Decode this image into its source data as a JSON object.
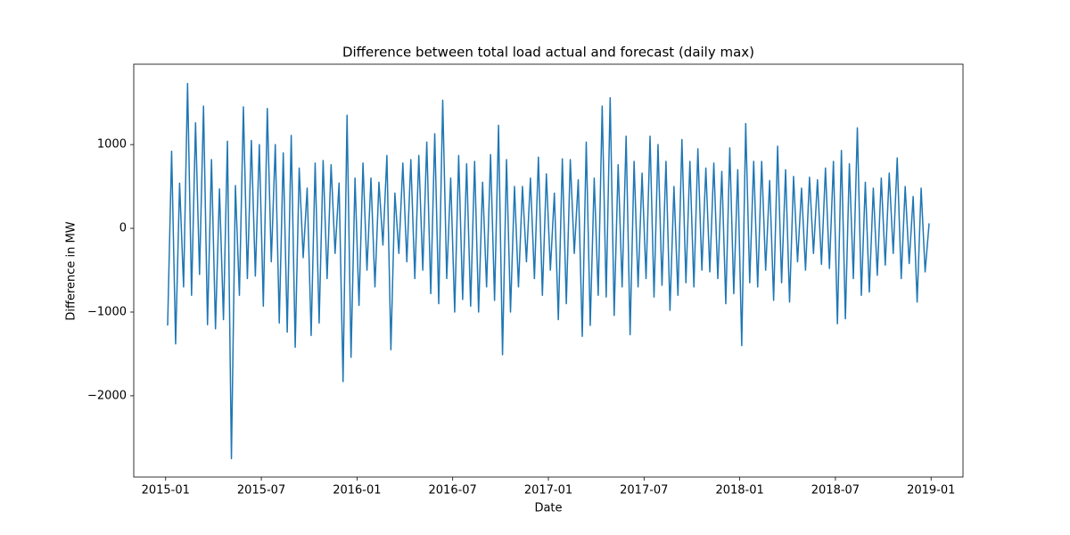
{
  "chart_data": {
    "type": "line",
    "title": "Difference between total load actual and forecast (daily max)",
    "x_label": "Date",
    "y_label": "Difference in MW",
    "x": [
      "2015-01",
      "2015-01",
      "2015-01",
      "2015-01",
      "2015-02",
      "2015-02",
      "2015-02",
      "2015-02",
      "2015-03",
      "2015-03",
      "2015-03",
      "2015-03",
      "2015-04",
      "2015-04",
      "2015-04",
      "2015-04",
      "2015-05",
      "2015-05",
      "2015-05",
      "2015-05",
      "2015-06",
      "2015-06",
      "2015-06",
      "2015-06",
      "2015-07",
      "2015-07",
      "2015-07",
      "2015-07",
      "2015-08",
      "2015-08",
      "2015-08",
      "2015-08",
      "2015-09",
      "2015-09",
      "2015-09",
      "2015-09",
      "2015-10",
      "2015-10",
      "2015-10",
      "2015-10",
      "2015-11",
      "2015-11",
      "2015-11",
      "2015-11",
      "2015-12",
      "2015-12",
      "2015-12",
      "2015-12",
      "2016-01",
      "2016-01",
      "2016-01",
      "2016-01",
      "2016-02",
      "2016-02",
      "2016-02",
      "2016-02",
      "2016-03",
      "2016-03",
      "2016-03",
      "2016-03",
      "2016-04",
      "2016-04",
      "2016-04",
      "2016-04",
      "2016-05",
      "2016-05",
      "2016-05",
      "2016-05",
      "2016-06",
      "2016-06",
      "2016-06",
      "2016-06",
      "2016-07",
      "2016-07",
      "2016-07",
      "2016-07",
      "2016-08",
      "2016-08",
      "2016-08",
      "2016-08",
      "2016-09",
      "2016-09",
      "2016-09",
      "2016-09",
      "2016-10",
      "2016-10",
      "2016-10",
      "2016-10",
      "2016-11",
      "2016-11",
      "2016-11",
      "2016-11",
      "2016-12",
      "2016-12",
      "2016-12",
      "2016-12",
      "2017-01",
      "2017-01",
      "2017-01",
      "2017-01",
      "2017-02",
      "2017-02",
      "2017-02",
      "2017-02",
      "2017-03",
      "2017-03",
      "2017-03",
      "2017-03",
      "2017-04",
      "2017-04",
      "2017-04",
      "2017-04",
      "2017-05",
      "2017-05",
      "2017-05",
      "2017-05",
      "2017-06",
      "2017-06",
      "2017-06",
      "2017-06",
      "2017-07",
      "2017-07",
      "2017-07",
      "2017-07",
      "2017-08",
      "2017-08",
      "2017-08",
      "2017-08",
      "2017-09",
      "2017-09",
      "2017-09",
      "2017-09",
      "2017-10",
      "2017-10",
      "2017-10",
      "2017-10",
      "2017-11",
      "2017-11",
      "2017-11",
      "2017-11",
      "2017-12",
      "2017-12",
      "2017-12",
      "2017-12",
      "2018-01",
      "2018-01",
      "2018-01",
      "2018-01",
      "2018-02",
      "2018-02",
      "2018-02",
      "2018-02",
      "2018-03",
      "2018-03",
      "2018-03",
      "2018-03",
      "2018-04",
      "2018-04",
      "2018-04",
      "2018-04",
      "2018-05",
      "2018-05",
      "2018-05",
      "2018-05",
      "2018-06",
      "2018-06",
      "2018-06",
      "2018-06",
      "2018-07",
      "2018-07",
      "2018-07",
      "2018-07",
      "2018-08",
      "2018-08",
      "2018-08",
      "2018-08",
      "2018-09",
      "2018-09",
      "2018-09",
      "2018-09",
      "2018-10",
      "2018-10",
      "2018-10",
      "2018-10",
      "2018-11",
      "2018-11",
      "2018-11",
      "2018-11",
      "2018-12",
      "2018-12",
      "2018-12",
      "2018-12"
    ],
    "series": [
      {
        "color": "#1f77b4",
        "values": [
          -1160,
          920,
          -1380,
          540,
          -700,
          1730,
          -800,
          1260,
          -550,
          1460,
          -1150,
          820,
          -1200,
          470,
          -1090,
          1040,
          -2750,
          510,
          -800,
          1450,
          -600,
          1050,
          -570,
          1000,
          -930,
          1430,
          -400,
          1000,
          -1130,
          900,
          -1240,
          1110,
          -1420,
          720,
          -350,
          480,
          -1280,
          780,
          -1130,
          810,
          -600,
          760,
          -300,
          540,
          -1830,
          1350,
          -1540,
          600,
          -920,
          780,
          -500,
          600,
          -700,
          550,
          -200,
          870,
          -1450,
          420,
          -300,
          780,
          -400,
          820,
          -600,
          870,
          -500,
          1030,
          -780,
          1130,
          -900,
          1530,
          -600,
          600,
          -1000,
          870,
          -850,
          770,
          -930,
          800,
          -1000,
          550,
          -700,
          880,
          -860,
          1230,
          -1510,
          820,
          -1000,
          500,
          -700,
          500,
          -400,
          600,
          -600,
          850,
          -800,
          650,
          -500,
          420,
          -1090,
          830,
          -900,
          820,
          -300,
          580,
          -1290,
          1030,
          -1160,
          600,
          -800,
          1460,
          -820,
          1560,
          -1040,
          760,
          -700,
          1100,
          -1270,
          800,
          -700,
          660,
          -600,
          1100,
          -820,
          1000,
          -680,
          800,
          -980,
          500,
          -800,
          1060,
          -650,
          800,
          -700,
          950,
          -500,
          720,
          -520,
          780,
          -600,
          680,
          -900,
          960,
          -780,
          700,
          -1400,
          1250,
          -650,
          800,
          -700,
          800,
          -500,
          570,
          -860,
          980,
          -650,
          700,
          -880,
          620,
          -400,
          480,
          -500,
          610,
          -300,
          580,
          -430,
          720,
          -480,
          800,
          -1140,
          930,
          -1080,
          770,
          -600,
          1200,
          -800,
          550,
          -760,
          480,
          -560,
          600,
          -440,
          660,
          -300,
          840,
          -600,
          500,
          -420,
          380,
          -880,
          480,
          -520,
          60
        ]
      }
    ],
    "xlim": [
      "2014-11",
      "2019-03"
    ],
    "xticks": [
      "2015-01",
      "2015-07",
      "2016-01",
      "2016-07",
      "2017-01",
      "2017-07",
      "2018-01",
      "2018-07",
      "2019-01"
    ],
    "ylim": [
      -2970,
      1960
    ],
    "yticks": [
      -2000,
      -1000,
      0,
      1000
    ],
    "grid": false
  }
}
